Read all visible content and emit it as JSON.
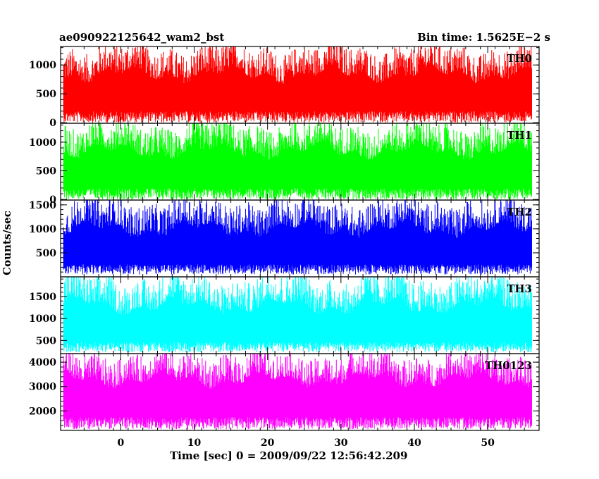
{
  "header": {
    "title": "ae090922125642_wam2_bst",
    "bin_time": "Bin time: 1.5625E−2 s"
  },
  "axis": {
    "ylabel": "Counts/sec",
    "xlabel": "Time [sec] 0 = 2009/09/22 12:56:42.209"
  },
  "chart_data": {
    "type": "line",
    "x_range": [
      -8.2,
      57.0
    ],
    "data_x_range": [
      -7.8,
      56.0
    ],
    "x_ticks": [
      0,
      10,
      20,
      30,
      40,
      50
    ],
    "x_tick_labels": [
      "0",
      "10",
      "20",
      "30",
      "40",
      "50"
    ],
    "panels": [
      {
        "name": "TH0",
        "color": "#ff0000",
        "ylim": [
          -10,
          1320
        ],
        "ticks": [
          0,
          500,
          1000
        ],
        "tick_labels": [
          "0",
          "500",
          "1000"
        ],
        "level": 560,
        "peak": 1320,
        "floor": 0
      },
      {
        "name": "TH1",
        "color": "#00ff00",
        "ylim": [
          -10,
          1330
        ],
        "ticks": [
          0,
          500,
          1000
        ],
        "tick_labels": [
          "0",
          "500",
          "1000"
        ],
        "level": 560,
        "peak": 1330,
        "floor": 0
      },
      {
        "name": "TH2",
        "color": "#0000ff",
        "ylim": [
          0,
          1600
        ],
        "ticks": [
          500,
          1000,
          1500
        ],
        "tick_labels": [
          "500",
          "1000",
          "1500"
        ],
        "level": 650,
        "peak": 1600,
        "floor": 50
      },
      {
        "name": "TH3",
        "color": "#00ffff",
        "ylim": [
          200,
          1950
        ],
        "ticks": [
          500,
          1000,
          1500
        ],
        "tick_labels": [
          "500",
          "1000",
          "1500"
        ],
        "level": 900,
        "peak": 1950,
        "floor": 230
      },
      {
        "name": "TH0123",
        "color": "#ff00ff",
        "ylim": [
          1200,
          4350
        ],
        "ticks": [
          2000,
          3000,
          4000
        ],
        "tick_labels": [
          "2000",
          "3000",
          "4000"
        ],
        "level": 2650,
        "peak": 4350,
        "floor": 1250
      }
    ]
  }
}
